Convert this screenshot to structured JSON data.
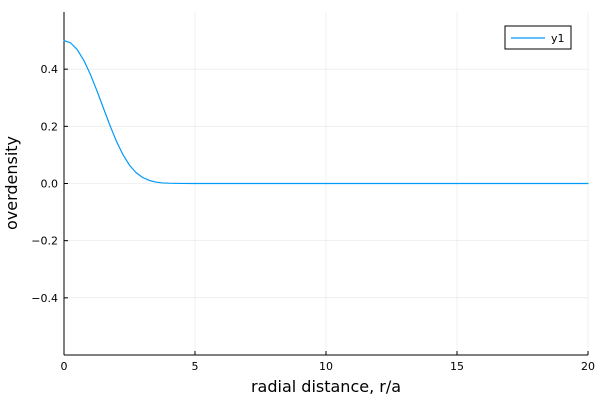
{
  "chart_data": {
    "type": "line",
    "title": "",
    "xlabel": "radial distance,  r/a",
    "ylabel": "overdensity",
    "xlim": [
      0,
      20
    ],
    "ylim": [
      -0.6,
      0.6
    ],
    "xticks": [
      0,
      5,
      10,
      15,
      20
    ],
    "xtick_labels": [
      "0",
      "5",
      "10",
      "15",
      "20"
    ],
    "yticks": [
      -0.4,
      -0.2,
      0.0,
      0.2,
      0.4
    ],
    "ytick_labels": [
      "−0.4",
      "−0.2",
      "0.0",
      "0.2",
      "0.4"
    ],
    "grid": true,
    "legend_position": "top-right",
    "series": [
      {
        "name": "y1",
        "color": "#009AFA",
        "x": [
          0,
          0.25,
          0.5,
          0.75,
          1.0,
          1.25,
          1.5,
          1.75,
          2.0,
          2.25,
          2.5,
          2.75,
          3.0,
          3.25,
          3.5,
          3.75,
          4.0,
          4.5,
          5.0,
          6.0,
          8.0,
          10.0,
          12.0,
          14.0,
          16.0,
          18.0,
          20.0
        ],
        "y": [
          0.5,
          0.492,
          0.469,
          0.432,
          0.383,
          0.326,
          0.265,
          0.204,
          0.148,
          0.101,
          0.064,
          0.038,
          0.021,
          0.011,
          0.005,
          0.002,
          0.001,
          0.0002,
          0.0,
          0.0,
          0.0,
          0.0,
          0.0,
          0.0,
          0.0,
          0.0,
          0.0
        ]
      }
    ]
  }
}
